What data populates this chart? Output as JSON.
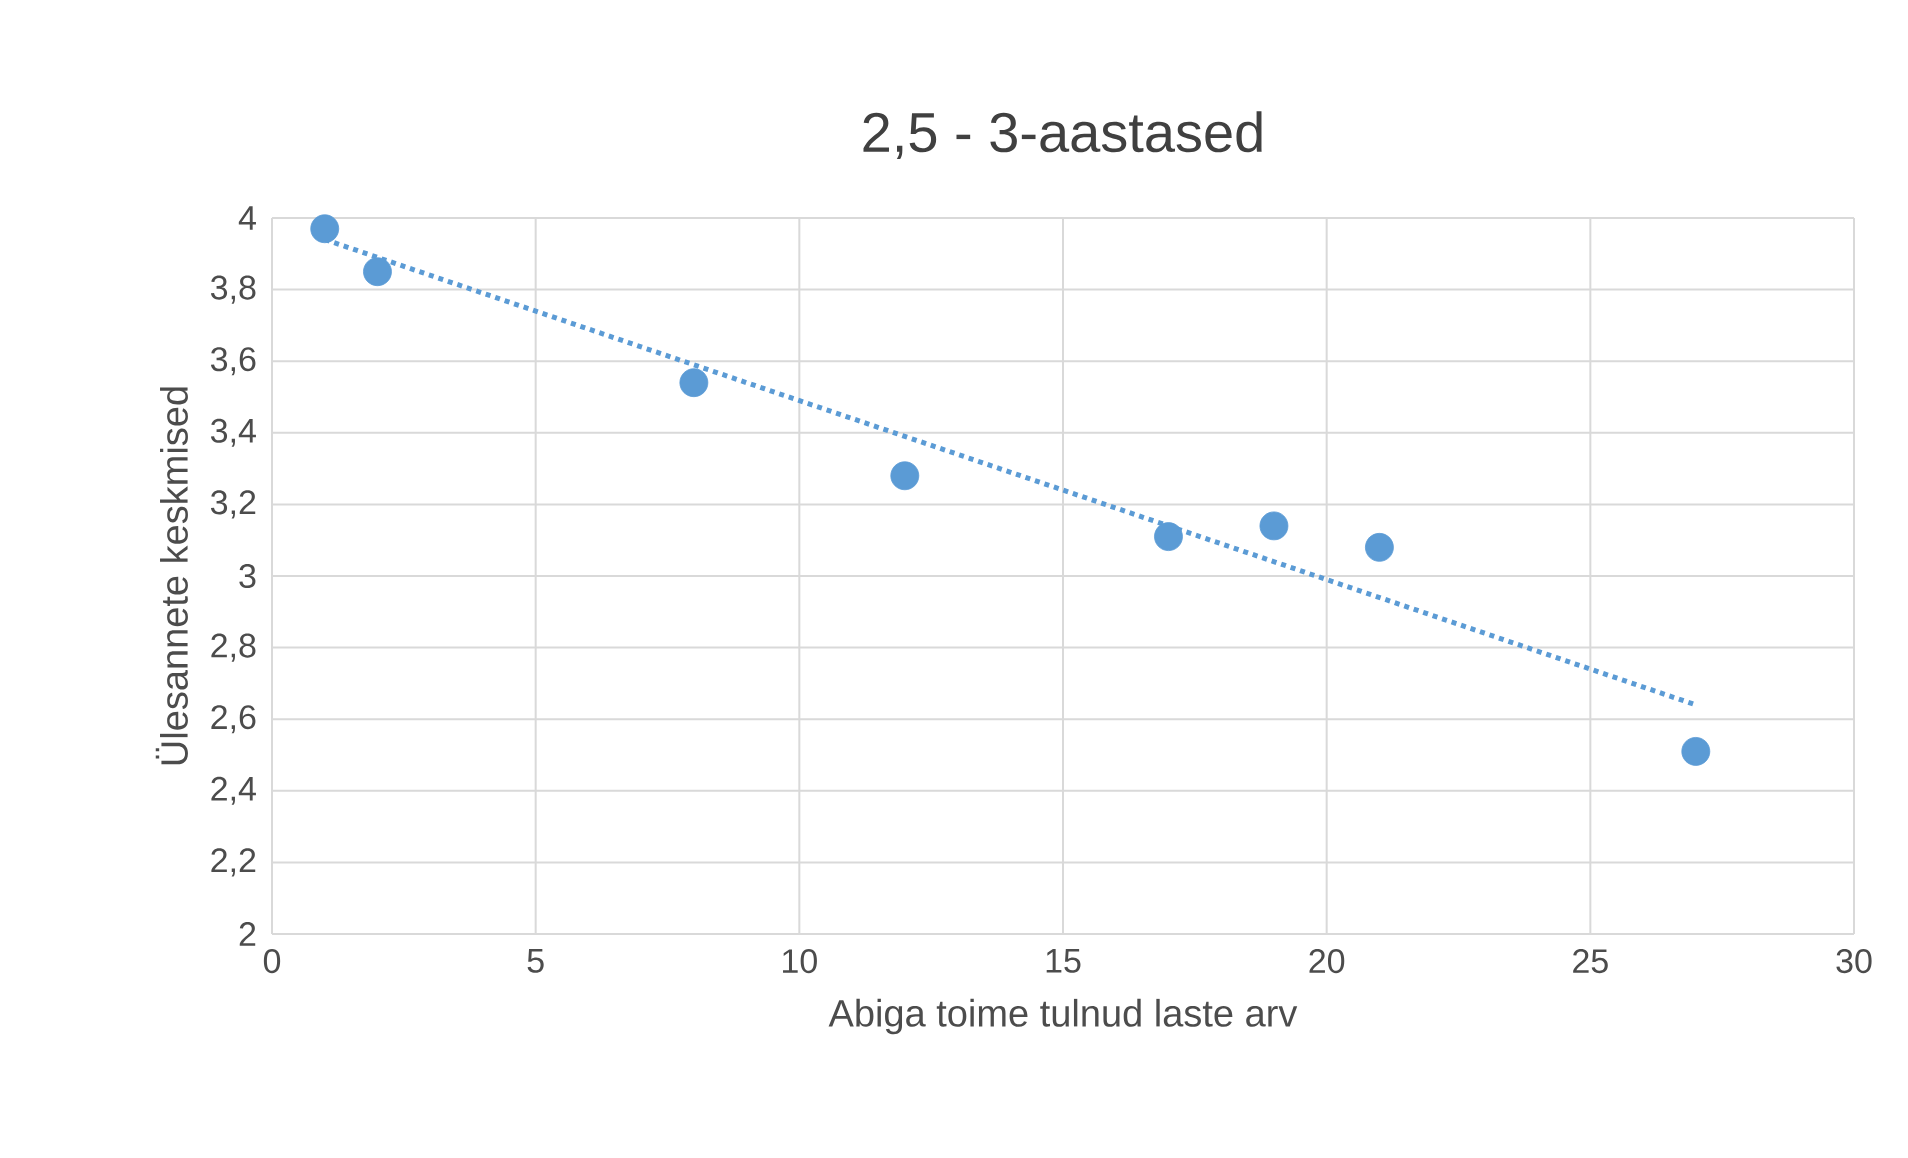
{
  "chart_data": {
    "type": "scatter",
    "title": "2,5 - 3-aastased",
    "xlabel": "Abiga toime tulnud laste arv",
    "ylabel": "Ülesannete keskmised",
    "xlim": [
      0,
      30
    ],
    "xticks": [
      0,
      5,
      10,
      15,
      20,
      25,
      30
    ],
    "ylim": [
      2,
      4
    ],
    "yticks": [
      2,
      {
        "value": 2.2,
        "label": "2,2"
      },
      {
        "value": 2.4,
        "label": "2,4"
      },
      {
        "value": 2.6,
        "label": "2,6"
      },
      {
        "value": 2.8,
        "label": "2,8"
      },
      3,
      {
        "value": 3.2,
        "label": "3,2"
      },
      {
        "value": 3.4,
        "label": "3,4"
      },
      {
        "value": 3.6,
        "label": "3,6"
      },
      {
        "value": 3.8,
        "label": "3,8"
      },
      4
    ],
    "grid": true,
    "series": [
      {
        "color": "#5b9bd5",
        "marker": "circle",
        "x": [
          1,
          2,
          8,
          12,
          17,
          19,
          21,
          27
        ],
        "values": [
          3.97,
          3.85,
          3.54,
          3.28,
          3.11,
          3.14,
          3.08,
          2.51
        ]
      },
      {
        "type": "line",
        "color": "#5b9bd5",
        "marker": "none",
        "line_style": "dotted",
        "x": [
          1,
          27
        ],
        "values": [
          3.94,
          2.64
        ]
      }
    ]
  }
}
